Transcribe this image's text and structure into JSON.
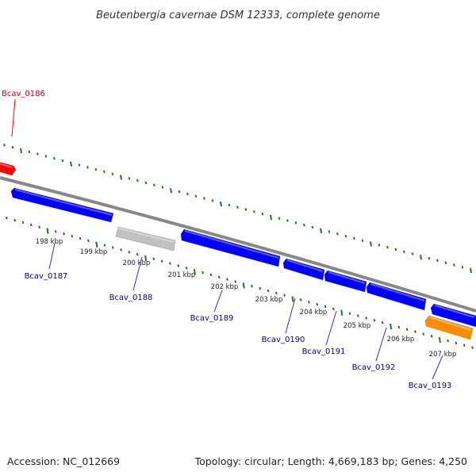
{
  "title": "Beutenbergia cavernae DSM 12333, complete genome",
  "footer": {
    "accession": "Accession: NC_012669",
    "topology": "Topology: circular; Length: 4,669,183 bp; Genes: 4,250"
  },
  "colors": {
    "forward_gene": "#0000ff",
    "reverse_gene": "#ff0000",
    "pseudo_gene": "#c0c0c0",
    "rna_gene": "#ff8c00",
    "backbone": "#808080",
    "tick": "#1a7a1a",
    "forward_label": "#00008b",
    "reverse_label": "#cc0000"
  },
  "ticks": [
    "198 kbp",
    "199 kbp",
    "200 kbp",
    "201 kbp",
    "202 kbp",
    "203 kbp",
    "204 kbp",
    "205 kbp",
    "206 kbp",
    "207 kbp"
  ],
  "genes": [
    {
      "name": "Bcav_0186",
      "strand": "reverse",
      "type": "gene"
    },
    {
      "name": "Bcav_0187",
      "strand": "forward",
      "type": "gene"
    },
    {
      "name": "Bcav_0188",
      "strand": "forward",
      "type": "pseudo"
    },
    {
      "name": "Bcav_0189",
      "strand": "forward",
      "type": "gene"
    },
    {
      "name": "Bcav_0190",
      "strand": "forward",
      "type": "gene"
    },
    {
      "name": "Bcav_0191",
      "strand": "forward",
      "type": "gene"
    },
    {
      "name": "Bcav_0192",
      "strand": "forward",
      "type": "gene"
    },
    {
      "name": "Bcav_0193",
      "strand": "forward",
      "type": "rna"
    }
  ],
  "extra_forward_gene": {
    "strand": "forward",
    "type": "gene"
  }
}
